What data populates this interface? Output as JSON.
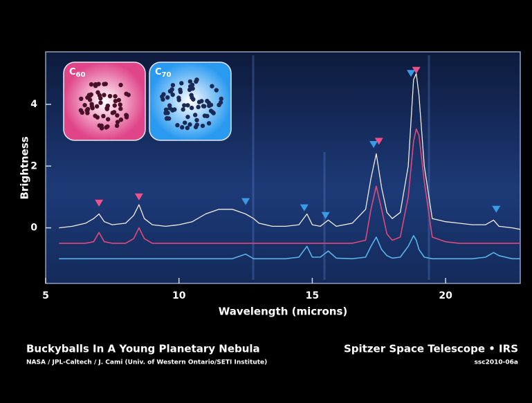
{
  "chart_data": {
    "type": "line",
    "x_label": "Wavelength (microns)",
    "y_label": "Brightness",
    "xlim": [
      5,
      22.8
    ],
    "ylim": [
      -1.8,
      5.7
    ],
    "xticks": [
      5,
      10,
      15,
      20
    ],
    "yticks": [
      0,
      2,
      4
    ],
    "x": [
      5.5,
      6.0,
      6.5,
      6.8,
      7.0,
      7.2,
      7.5,
      8.0,
      8.3,
      8.5,
      8.7,
      9.0,
      9.5,
      10.0,
      10.5,
      11.0,
      11.5,
      12.0,
      12.5,
      12.8,
      13.0,
      13.5,
      14.0,
      14.5,
      14.8,
      15.0,
      15.3,
      15.6,
      15.9,
      16.5,
      17.0,
      17.2,
      17.4,
      17.6,
      17.8,
      18.0,
      18.3,
      18.6,
      18.8,
      18.9,
      19.0,
      19.2,
      19.5,
      20.0,
      20.5,
      21.0,
      21.5,
      21.8,
      22.0,
      22.5,
      22.8
    ],
    "series": [
      {
        "color": "#f4efe6",
        "values": [
          0.0,
          0.05,
          0.15,
          0.3,
          0.45,
          0.2,
          0.1,
          0.15,
          0.4,
          0.75,
          0.3,
          0.1,
          0.05,
          0.1,
          0.2,
          0.45,
          0.6,
          0.6,
          0.45,
          0.3,
          0.15,
          0.05,
          0.05,
          0.1,
          0.45,
          0.1,
          0.05,
          0.25,
          0.05,
          0.15,
          0.6,
          1.6,
          2.4,
          1.3,
          0.5,
          0.3,
          0.5,
          2.0,
          4.8,
          5.0,
          4.3,
          2.0,
          0.3,
          0.2,
          0.15,
          0.1,
          0.1,
          0.25,
          0.05,
          0.0,
          -0.05
        ]
      },
      {
        "color": "#e04a7a",
        "values": [
          -0.5,
          -0.5,
          -0.5,
          -0.45,
          -0.15,
          -0.45,
          -0.5,
          -0.5,
          -0.35,
          0.0,
          -0.35,
          -0.5,
          -0.5,
          -0.5,
          -0.5,
          -0.5,
          -0.5,
          -0.5,
          -0.5,
          -0.5,
          -0.5,
          -0.5,
          -0.5,
          -0.5,
          -0.5,
          -0.5,
          -0.5,
          -0.5,
          -0.5,
          -0.5,
          -0.4,
          0.6,
          1.35,
          0.6,
          -0.2,
          -0.4,
          -0.3,
          1.0,
          2.8,
          3.2,
          3.0,
          1.5,
          -0.3,
          -0.45,
          -0.5,
          -0.5,
          -0.5,
          -0.5,
          -0.5,
          -0.5,
          -0.5
        ]
      },
      {
        "color": "#5ab4e8",
        "values": [
          -1,
          -1,
          -1,
          -1,
          -1,
          -1,
          -1,
          -1,
          -1,
          -1,
          -1,
          -1,
          -1,
          -1,
          -1,
          -1,
          -1,
          -1,
          -0.85,
          -1,
          -1,
          -1,
          -1,
          -0.95,
          -0.6,
          -0.95,
          -0.95,
          -0.75,
          -0.98,
          -1,
          -0.95,
          -0.6,
          -0.3,
          -0.7,
          -0.9,
          -0.98,
          -0.95,
          -0.6,
          -0.25,
          -0.4,
          -0.7,
          -0.95,
          -1,
          -1,
          -1,
          -1,
          -0.95,
          -0.8,
          -0.9,
          -1,
          -1
        ]
      }
    ],
    "c60_markers": {
      "color": "#f0508a",
      "x": [
        7.0,
        8.5,
        17.5,
        18.9
      ],
      "y": [
        0.8,
        1.0,
        2.8,
        5.1
      ]
    },
    "c70_markers": {
      "color": "#3a9ae8",
      "x": [
        12.5,
        14.7,
        15.5,
        17.3,
        18.7,
        21.9
      ],
      "y": [
        0.85,
        0.65,
        0.4,
        2.7,
        5.0,
        0.6
      ]
    },
    "insets": [
      {
        "label": "C",
        "sub": "60",
        "color": "#e0458a"
      },
      {
        "label": "C",
        "sub": "70",
        "color": "#2a9af0"
      }
    ],
    "title": "Buckyballs In A Young Planetary Nebula",
    "credit": "NASA / JPL-Caltech / J. Cami (Univ. of Western Ontario/SETI Institute)",
    "instrument": "Spitzer Space Telescope • IRS",
    "image_id": "ssc2010-06a"
  }
}
